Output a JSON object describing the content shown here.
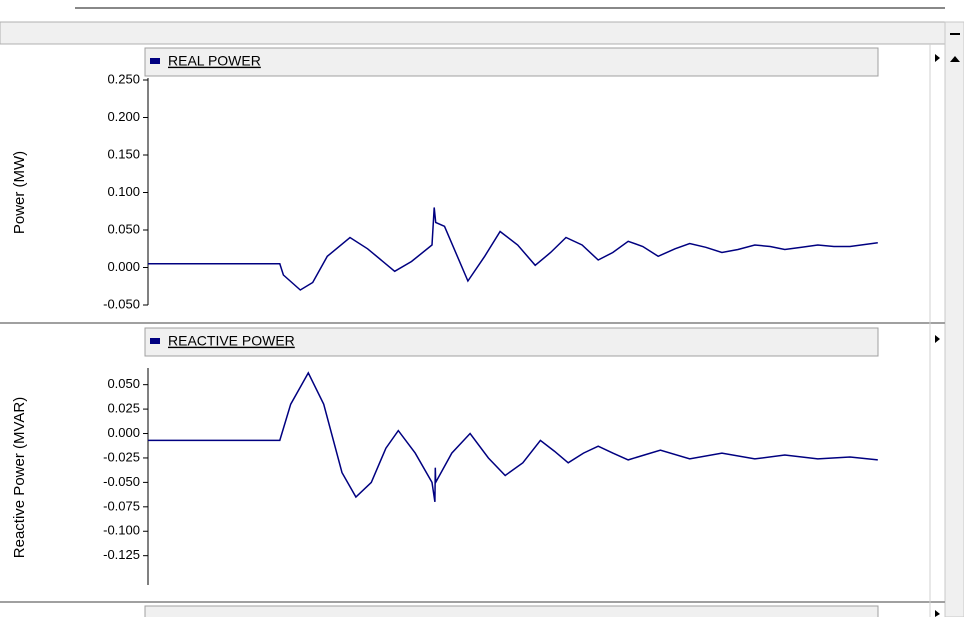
{
  "chart_data": [
    {
      "type": "line",
      "ylabel": "Power (MW)",
      "xlim": [
        0,
        100
      ],
      "ylim": [
        -0.05,
        0.25
      ],
      "yticks": [
        {
          "value": 0.25,
          "label": "0.250"
        },
        {
          "value": 0.2,
          "label": "0.200"
        },
        {
          "value": 0.15,
          "label": "0.150"
        },
        {
          "value": 0.1,
          "label": "0.100"
        },
        {
          "value": 0.05,
          "label": "0.050"
        },
        {
          "value": 0,
          "label": "0.000"
        },
        {
          "value": -0.05,
          "label": "-0.050"
        }
      ],
      "x": [
        0,
        18,
        18.5,
        20.8,
        22.5,
        24.5,
        27.6,
        30,
        33.7,
        36,
        38.8,
        39.1,
        39.3,
        40.5,
        43.7,
        46,
        48.1,
        50.5,
        52.9,
        55,
        57.1,
        59.3,
        61.5,
        63.5,
        65.6,
        67.6,
        69.7,
        72,
        74,
        76.2,
        78.4,
        80.6,
        82.9,
        85,
        87,
        89.3,
        91.5,
        93.7,
        95.9,
        99.7
      ],
      "series": [
        {
          "name": "REAL POWER",
          "color": "#000080",
          "values": [
            0.005,
            0.005,
            -0.01,
            -0.03,
            -0.02,
            0.015,
            0.04,
            0.025,
            -0.005,
            0.008,
            0.03,
            0.08,
            0.06,
            0.055,
            -0.018,
            0.015,
            0.048,
            0.03,
            0.003,
            0.02,
            0.04,
            0.03,
            0.01,
            0.02,
            0.035,
            0.028,
            0.015,
            0.025,
            0.032,
            0.027,
            0.02,
            0.024,
            0.03,
            0.028,
            0.024,
            0.027,
            0.03,
            0.028,
            0.028,
            0.033
          ]
        }
      ]
    },
    {
      "type": "line",
      "ylabel": "Reactive Power (MVAR)",
      "xlim": [
        0,
        100
      ],
      "ylim": [
        -0.155,
        0.065
      ],
      "yticks": [
        {
          "value": 0.05,
          "label": "0.050"
        },
        {
          "value": 0.025,
          "label": "0.025"
        },
        {
          "value": 0,
          "label": "0.000"
        },
        {
          "value": -0.025,
          "label": "-0.025"
        },
        {
          "value": -0.05,
          "label": "-0.050"
        },
        {
          "value": -0.075,
          "label": "-0.075"
        },
        {
          "value": -0.1,
          "label": "-0.100"
        },
        {
          "value": -0.125,
          "label": "-0.125"
        }
      ],
      "x": [
        0,
        18,
        19.5,
        21.9,
        24,
        26.5,
        28.4,
        30.5,
        32.5,
        34.2,
        36.5,
        38.8,
        39.2,
        39.25,
        39.3,
        41.5,
        44,
        46.5,
        48.8,
        51.2,
        53.6,
        55.5,
        57.4,
        59.5,
        61.5,
        63.5,
        65.6,
        67.8,
        70,
        74,
        78.4,
        82.9,
        87,
        91.5,
        95.9,
        99.7
      ],
      "series": [
        {
          "name": "REACTIVE POWER",
          "color": "#000080",
          "values": [
            -0.007,
            -0.007,
            0.03,
            0.062,
            0.03,
            -0.04,
            -0.065,
            -0.05,
            -0.015,
            0.003,
            -0.02,
            -0.05,
            -0.07,
            -0.035,
            -0.05,
            -0.02,
            0.0,
            -0.025,
            -0.043,
            -0.03,
            -0.007,
            -0.018,
            -0.03,
            -0.02,
            -0.013,
            -0.02,
            -0.027,
            -0.022,
            -0.017,
            -0.026,
            -0.02,
            -0.026,
            -0.022,
            -0.026,
            -0.024,
            -0.027
          ]
        }
      ]
    }
  ]
}
